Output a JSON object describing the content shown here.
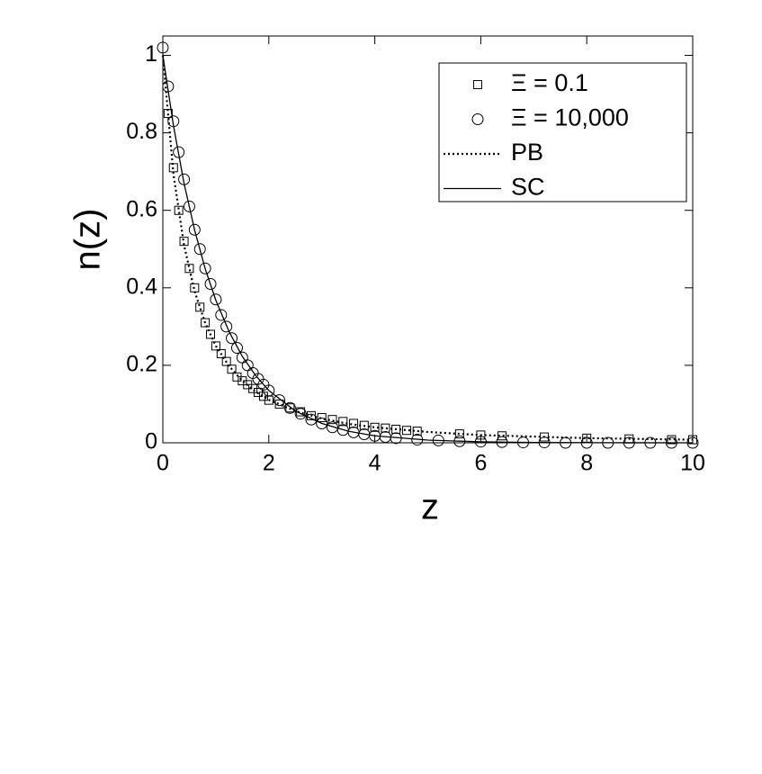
{
  "chart_data": {
    "type": "scatter",
    "xlabel": "z",
    "ylabel": "n(z)",
    "xlim": [
      0,
      10
    ],
    "ylim": [
      0,
      1.05
    ],
    "xticks": [
      0,
      2,
      4,
      6,
      8,
      10
    ],
    "yticks": [
      0,
      0.2,
      0.4,
      0.6,
      0.8,
      1
    ],
    "legend": "upper right",
    "series": [
      {
        "name": "Ξ = 0.1",
        "marker": "square",
        "color": "#000000",
        "x": [
          0.1,
          0.2,
          0.3,
          0.4,
          0.5,
          0.6,
          0.7,
          0.8,
          0.9,
          1.0,
          1.1,
          1.2,
          1.3,
          1.4,
          1.5,
          1.6,
          1.7,
          1.8,
          1.9,
          2.0,
          2.2,
          2.4,
          2.6,
          2.8,
          3.0,
          3.2,
          3.4,
          3.6,
          3.8,
          4.0,
          4.2,
          4.4,
          4.6,
          4.8,
          5.6,
          6.0,
          6.4,
          7.2,
          8.0,
          8.8,
          9.6,
          10.0
        ],
        "values": [
          0.85,
          0.71,
          0.6,
          0.52,
          0.45,
          0.4,
          0.35,
          0.31,
          0.28,
          0.25,
          0.23,
          0.21,
          0.19,
          0.17,
          0.16,
          0.15,
          0.14,
          0.13,
          0.12,
          0.11,
          0.1,
          0.09,
          0.08,
          0.07,
          0.065,
          0.06,
          0.055,
          0.05,
          0.045,
          0.04,
          0.038,
          0.035,
          0.032,
          0.03,
          0.023,
          0.02,
          0.018,
          0.015,
          0.012,
          0.01,
          0.008,
          0.008
        ]
      },
      {
        "name": "Ξ = 10,000",
        "marker": "circle",
        "color": "#000000",
        "x": [
          0,
          0.1,
          0.2,
          0.3,
          0.4,
          0.5,
          0.6,
          0.7,
          0.8,
          0.9,
          1.0,
          1.1,
          1.2,
          1.3,
          1.4,
          1.5,
          1.6,
          1.7,
          1.8,
          1.9,
          2.0,
          2.2,
          2.4,
          2.6,
          2.8,
          3.0,
          3.2,
          3.4,
          3.6,
          3.8,
          4.0,
          4.2,
          4.4,
          4.8,
          5.2,
          5.6,
          6.0,
          6.4,
          6.8,
          7.2,
          7.6,
          8.0,
          8.4,
          8.8,
          9.2,
          9.6,
          10.0
        ],
        "values": [
          1.02,
          0.92,
          0.83,
          0.75,
          0.68,
          0.61,
          0.55,
          0.5,
          0.45,
          0.41,
          0.37,
          0.33,
          0.3,
          0.27,
          0.245,
          0.22,
          0.2,
          0.18,
          0.165,
          0.15,
          0.135,
          0.11,
          0.09,
          0.075,
          0.06,
          0.05,
          0.04,
          0.033,
          0.027,
          0.022,
          0.018,
          0.015,
          0.012,
          0.008,
          0.006,
          0.004,
          0.003,
          0.002,
          0.001,
          0.001,
          0,
          0,
          0,
          0,
          0,
          0,
          0
        ]
      },
      {
        "name": "PB",
        "line": "dotted",
        "color": "#000000",
        "x": [
          0,
          0.2,
          0.4,
          0.6,
          0.8,
          1,
          1.25,
          1.5,
          1.75,
          2,
          2.5,
          3,
          3.5,
          4,
          5,
          6,
          7,
          8,
          9,
          10
        ],
        "values": [
          1,
          0.694,
          0.51,
          0.391,
          0.309,
          0.25,
          0.198,
          0.16,
          0.132,
          0.111,
          0.082,
          0.0625,
          0.049,
          0.04,
          0.028,
          0.02,
          0.016,
          0.012,
          0.01,
          0.008
        ]
      },
      {
        "name": "SC",
        "line": "solid",
        "color": "#000000",
        "x": [
          0,
          0.2,
          0.4,
          0.6,
          0.8,
          1,
          1.25,
          1.5,
          1.75,
          2,
          2.5,
          3,
          3.5,
          4,
          5,
          6,
          7,
          8,
          9,
          10
        ],
        "values": [
          1,
          0.819,
          0.67,
          0.549,
          0.449,
          0.368,
          0.287,
          0.223,
          0.174,
          0.135,
          0.082,
          0.05,
          0.03,
          0.018,
          0.007,
          0.0025,
          0.0009,
          0.0003,
          0.0001,
          5e-05
        ]
      }
    ]
  }
}
